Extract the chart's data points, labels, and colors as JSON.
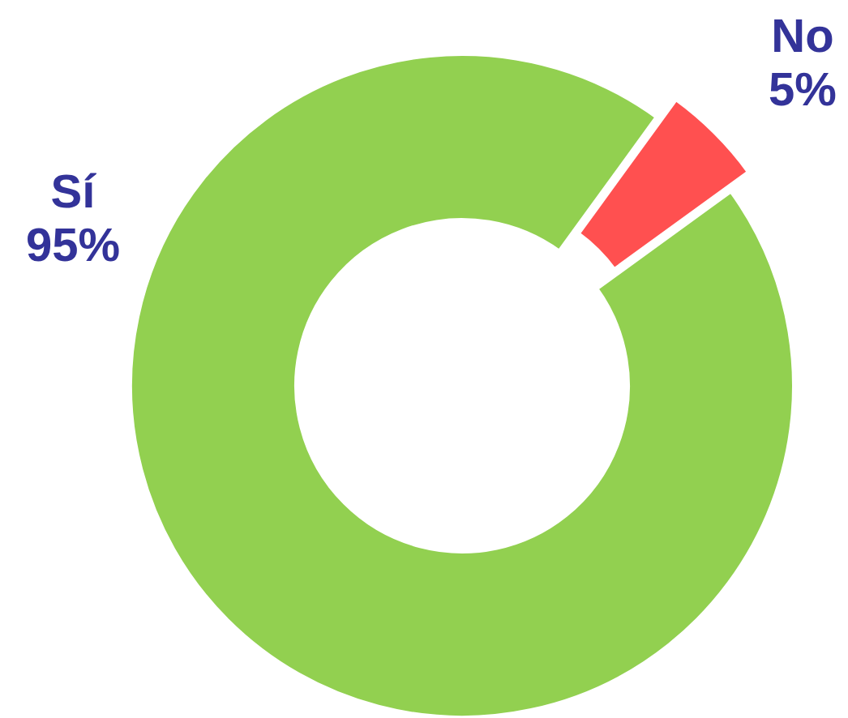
{
  "chart_data": {
    "type": "donut",
    "categories": [
      "Sí",
      "No"
    ],
    "values": [
      95,
      5
    ],
    "colors": [
      "#92d050",
      "#ff5050"
    ],
    "value_labels": [
      "95%",
      "5%"
    ]
  }
}
